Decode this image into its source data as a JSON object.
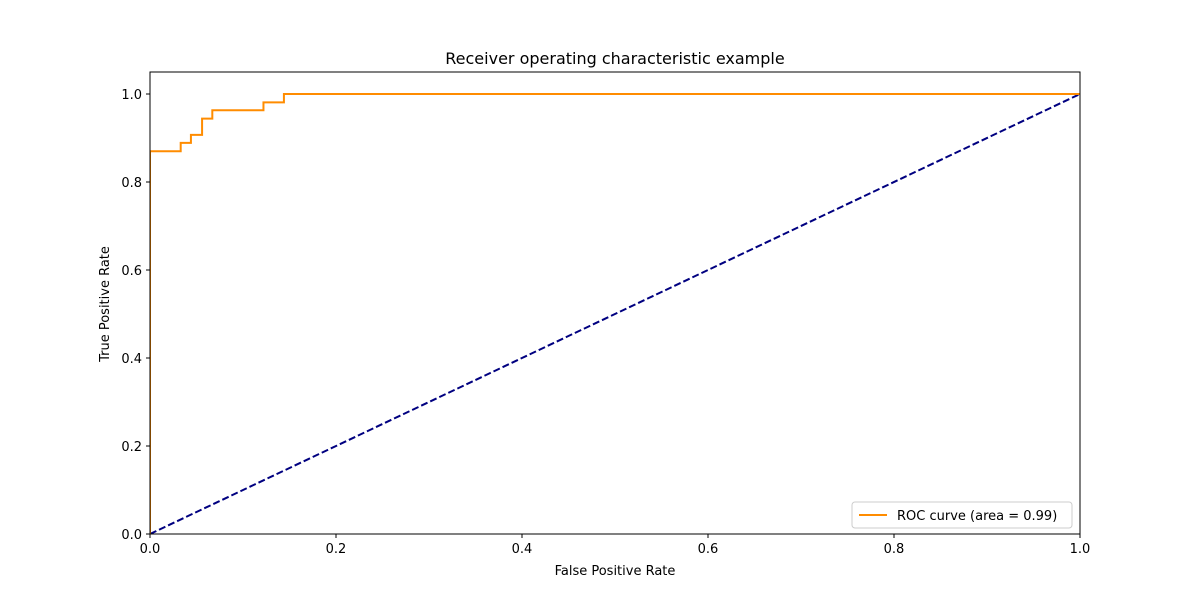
{
  "chart_data": {
    "type": "line",
    "title": "Receiver operating characteristic example",
    "xlabel": "False Positive Rate",
    "ylabel": "True Positive Rate",
    "xlim": [
      0.0,
      1.0
    ],
    "ylim": [
      0.0,
      1.05
    ],
    "xticks": [
      0.0,
      0.2,
      0.4,
      0.6,
      0.8,
      1.0
    ],
    "yticks": [
      0.0,
      0.2,
      0.4,
      0.6,
      0.8,
      1.0
    ],
    "xtick_labels": [
      "0.0",
      "0.2",
      "0.4",
      "0.6",
      "0.8",
      "1.0"
    ],
    "ytick_labels": [
      "0.0",
      "0.2",
      "0.4",
      "0.6",
      "0.8",
      "1.0"
    ],
    "grid": false,
    "legend_position": "lower right",
    "series": [
      {
        "name": "ROC curve (area = 0.99)",
        "color": "#ff8c00",
        "style": "solid",
        "step": true,
        "x": [
          0.0,
          0.0,
          0.033,
          0.033,
          0.044,
          0.044,
          0.056,
          0.056,
          0.067,
          0.067,
          0.122,
          0.122,
          0.144,
          0.144,
          1.0
        ],
        "y": [
          0.0,
          0.87,
          0.87,
          0.889,
          0.889,
          0.907,
          0.907,
          0.944,
          0.944,
          0.963,
          0.963,
          0.981,
          0.981,
          1.0,
          1.0
        ]
      },
      {
        "name": "",
        "color": "#000080",
        "style": "dashed",
        "step": false,
        "x": [
          0.0,
          1.0
        ],
        "y": [
          0.0,
          1.0
        ]
      }
    ]
  }
}
